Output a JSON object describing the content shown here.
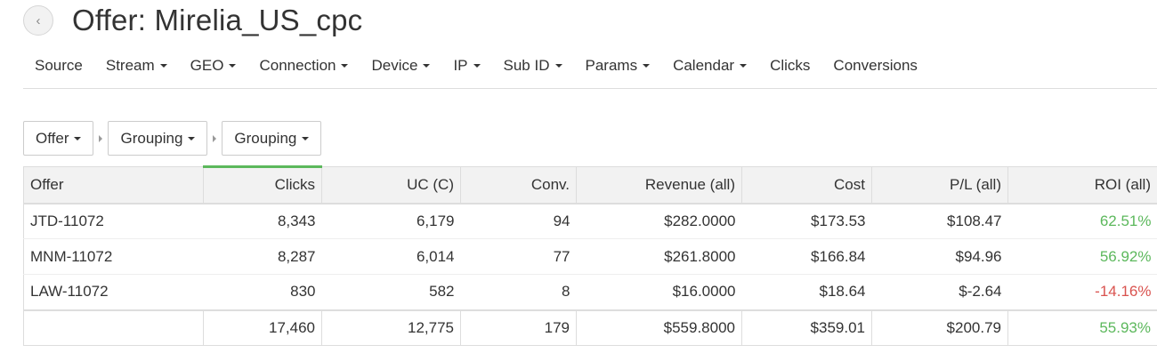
{
  "header": {
    "title": "Offer: Mirelia_US_cpc",
    "back_symbol": "‹"
  },
  "nav": [
    {
      "label": "Source",
      "dropdown": false
    },
    {
      "label": "Stream",
      "dropdown": true
    },
    {
      "label": "GEO",
      "dropdown": true
    },
    {
      "label": "Connection",
      "dropdown": true
    },
    {
      "label": "Device",
      "dropdown": true
    },
    {
      "label": "IP",
      "dropdown": true
    },
    {
      "label": "Sub ID",
      "dropdown": true
    },
    {
      "label": "Params",
      "dropdown": true
    },
    {
      "label": "Calendar",
      "dropdown": true
    },
    {
      "label": "Clicks",
      "dropdown": false
    },
    {
      "label": "Conversions",
      "dropdown": false
    }
  ],
  "filters": [
    "Offer",
    "Grouping",
    "Grouping"
  ],
  "table": {
    "columns": [
      "Offer",
      "Clicks",
      "UC (C)",
      "Conv.",
      "Revenue (all)",
      "Cost",
      "P/L (all)",
      "ROI (all)"
    ],
    "rows": [
      {
        "offer": "JTD-11072",
        "clicks": "8,343",
        "uc": "6,179",
        "conv": "94",
        "revenue": "$282.0000",
        "cost": "$173.53",
        "pl": "$108.47",
        "roi": "62.51%",
        "roi_status": "positive"
      },
      {
        "offer": "MNM-11072",
        "clicks": "8,287",
        "uc": "6,014",
        "conv": "77",
        "revenue": "$261.8000",
        "cost": "$166.84",
        "pl": "$94.96",
        "roi": "56.92%",
        "roi_status": "positive"
      },
      {
        "offer": "LAW-11072",
        "clicks": "830",
        "uc": "582",
        "conv": "8",
        "revenue": "$16.0000",
        "cost": "$18.64",
        "pl": "$-2.64",
        "roi": "-14.16%",
        "roi_status": "negative"
      }
    ],
    "totals": {
      "offer": "",
      "clicks": "17,460",
      "uc": "12,775",
      "conv": "179",
      "revenue": "$559.8000",
      "cost": "$359.01",
      "pl": "$200.79",
      "roi": "55.93%",
      "roi_status": "positive"
    }
  },
  "colors": {
    "positive": "#5cb85c",
    "negative": "#d9534f",
    "sort_indicator": "#5cb85c"
  },
  "icons": {
    "back": "chevron-left-icon",
    "dropdown": "caret-down-icon",
    "separator": "caret-right-icon"
  }
}
